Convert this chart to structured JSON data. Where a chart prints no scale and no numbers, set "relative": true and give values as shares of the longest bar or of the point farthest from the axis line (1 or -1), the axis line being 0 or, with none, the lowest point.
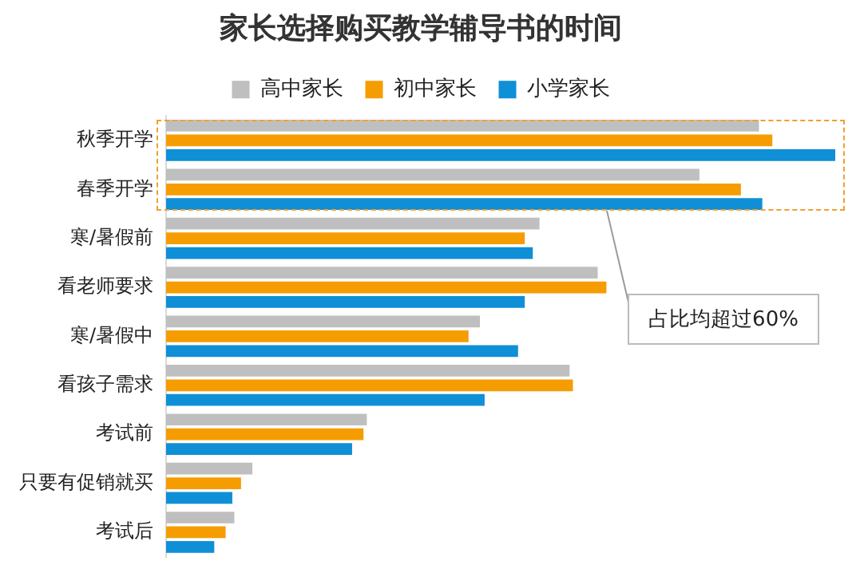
{
  "chart_data": {
    "type": "bar",
    "orientation": "horizontal",
    "relative": true,
    "title": "家长选择购买教学辅导书的时间",
    "categories": [
      "秋季开学",
      "春季开学",
      "寒/暑假前",
      "看老师要求",
      "寒/暑假中",
      "看孩子需求",
      "考试前",
      "只要有促销就买",
      "考试后"
    ],
    "series": [
      {
        "name": "高中家长",
        "color": "#bfbfbf",
        "values": [
          0.886,
          0.797,
          0.558,
          0.645,
          0.469,
          0.603,
          0.3,
          0.129,
          0.102
        ]
      },
      {
        "name": "初中家长",
        "color": "#f59d00",
        "values": [
          0.906,
          0.859,
          0.536,
          0.658,
          0.452,
          0.608,
          0.295,
          0.112,
          0.089
        ]
      },
      {
        "name": "小学家长",
        "color": "#0f8fd6",
        "values": [
          1,
          0.891,
          0.548,
          0.536,
          0.526,
          0.476,
          0.278,
          0.099,
          0.072
        ]
      }
    ],
    "annotations": [
      "占比均超过60%"
    ],
    "legend": "top"
  }
}
